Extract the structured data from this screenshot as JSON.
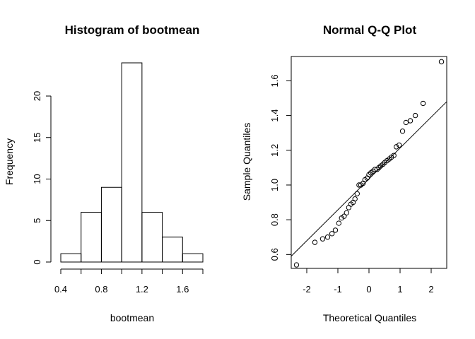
{
  "chart_data": [
    {
      "type": "bar",
      "subtype": "histogram",
      "title": "Histogram of bootmean",
      "xlabel": "bootmean",
      "ylabel": "Frequency",
      "bins": [
        {
          "start": 0.4,
          "end": 0.6,
          "count": 1
        },
        {
          "start": 0.6,
          "end": 0.8,
          "count": 6
        },
        {
          "start": 0.8,
          "end": 1.0,
          "count": 9
        },
        {
          "start": 1.0,
          "end": 1.2,
          "count": 24
        },
        {
          "start": 1.2,
          "end": 1.4,
          "count": 6
        },
        {
          "start": 1.4,
          "end": 1.6,
          "count": 3
        },
        {
          "start": 1.6,
          "end": 1.8,
          "count": 1
        }
      ],
      "xticks": [
        "0.4",
        "0.8",
        "1.2",
        "1.6"
      ],
      "xtick_values": [
        0.4,
        0.8,
        1.2,
        1.6
      ],
      "yticks": [
        "0",
        "5",
        "10",
        "15",
        "20"
      ],
      "ytick_values": [
        0,
        5,
        10,
        15,
        20
      ],
      "xlim": [
        0.4,
        1.8
      ],
      "ylim": [
        0,
        24
      ],
      "grid": false
    },
    {
      "type": "scatter",
      "subtype": "qq",
      "title": "Normal Q-Q Plot",
      "xlabel": "Theoretical Quantiles",
      "ylabel": "Sample Quantiles",
      "points": [
        [
          -2.33,
          0.54
        ],
        [
          -1.74,
          0.67
        ],
        [
          -1.49,
          0.69
        ],
        [
          -1.33,
          0.7
        ],
        [
          -1.19,
          0.72
        ],
        [
          -1.08,
          0.74
        ],
        [
          -0.97,
          0.78
        ],
        [
          -0.88,
          0.81
        ],
        [
          -0.8,
          0.82
        ],
        [
          -0.72,
          0.84
        ],
        [
          -0.65,
          0.87
        ],
        [
          -0.58,
          0.89
        ],
        [
          -0.51,
          0.9
        ],
        [
          -0.45,
          0.92
        ],
        [
          -0.38,
          0.95
        ],
        [
          -0.32,
          1.0
        ],
        [
          -0.26,
          1.0
        ],
        [
          -0.19,
          1.01
        ],
        [
          -0.13,
          1.03
        ],
        [
          -0.06,
          1.04
        ],
        [
          0.0,
          1.06
        ],
        [
          0.06,
          1.07
        ],
        [
          0.13,
          1.08
        ],
        [
          0.19,
          1.09
        ],
        [
          0.26,
          1.09
        ],
        [
          0.32,
          1.1
        ],
        [
          0.38,
          1.11
        ],
        [
          0.45,
          1.12
        ],
        [
          0.51,
          1.13
        ],
        [
          0.58,
          1.14
        ],
        [
          0.65,
          1.15
        ],
        [
          0.72,
          1.16
        ],
        [
          0.8,
          1.17
        ],
        [
          0.88,
          1.22
        ],
        [
          0.97,
          1.23
        ],
        [
          1.08,
          1.31
        ],
        [
          1.19,
          1.36
        ],
        [
          1.33,
          1.37
        ],
        [
          1.49,
          1.4
        ],
        [
          1.74,
          1.47
        ],
        [
          2.33,
          1.71
        ]
      ],
      "reference_line": [
        [
          -2.5,
          0.59
        ],
        [
          2.5,
          1.48
        ]
      ],
      "xticks": [
        "-2",
        "-1",
        "0",
        "1",
        "2"
      ],
      "xtick_values": [
        -2,
        -1,
        0,
        1,
        2
      ],
      "yticks": [
        "0.6",
        "0.8",
        "1.0",
        "1.2",
        "1.4",
        "1.6"
      ],
      "ytick_values": [
        0.6,
        0.8,
        1.0,
        1.2,
        1.4,
        1.6
      ],
      "xlim": [
        -2.5,
        2.5
      ],
      "ylim": [
        0.52,
        1.74
      ],
      "grid": false
    }
  ]
}
